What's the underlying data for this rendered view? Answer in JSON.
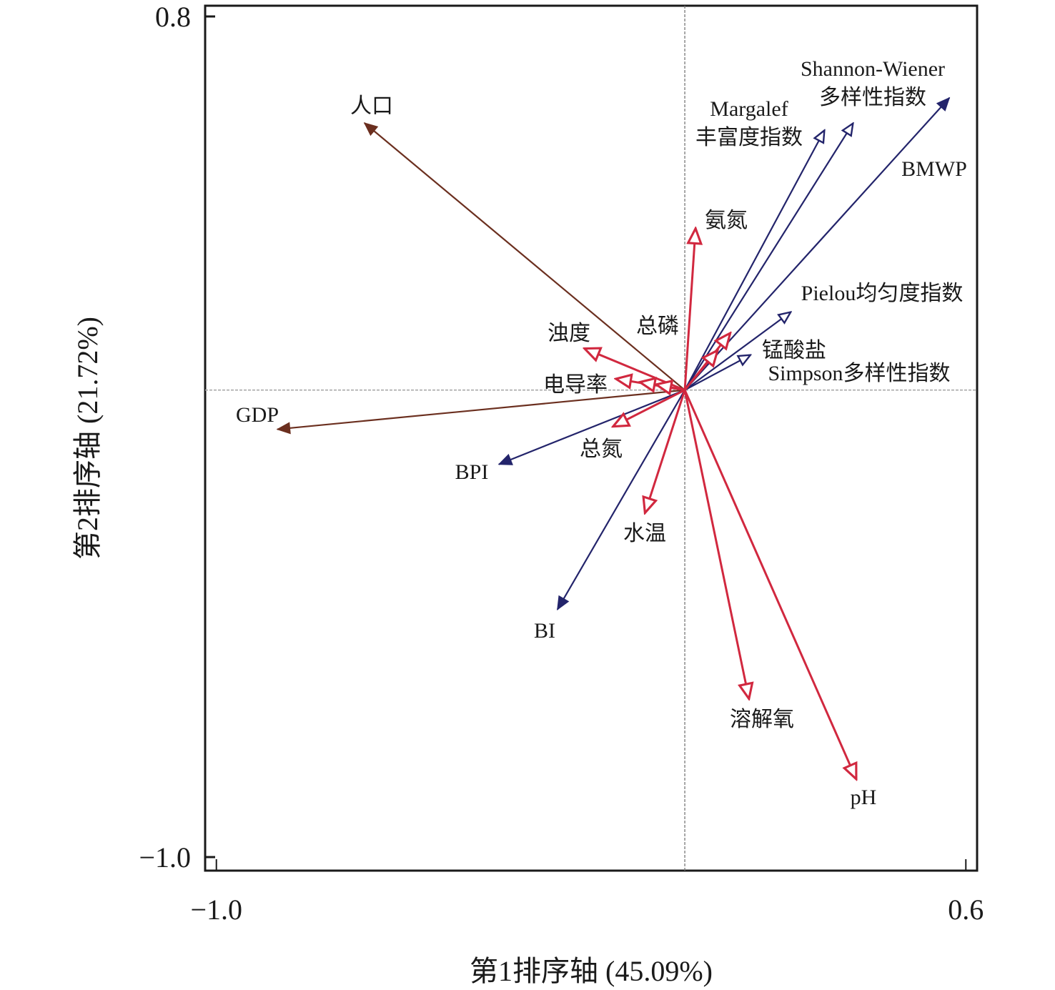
{
  "chart_data": {
    "type": "biplot",
    "subtype": "RDA ordination biplot (vector arrows from origin)",
    "title": "",
    "xlabel": "第1排序轴 (45.09%)",
    "ylabel": "第2排序轴 (21.72%)",
    "xlim": [
      -1.024,
      0.624
    ],
    "ylim": [
      -1.029,
      0.823
    ],
    "xticks": [
      {
        "value": -1.0,
        "label": "−1.0"
      },
      {
        "value": 0.6,
        "label": "0.6"
      }
    ],
    "yticks": [
      {
        "value": 0.8,
        "label": "0.8"
      },
      {
        "value": -1.0,
        "label": "−1.0"
      }
    ],
    "reference_lines": {
      "x0": true,
      "y0": true,
      "style": "dashed"
    },
    "grid": false,
    "legend": "none",
    "groups": [
      {
        "name": "socioeconomic",
        "color": "#6b2f1f",
        "arrowhead": "filled"
      },
      {
        "name": "environmental",
        "color": "#d1283f",
        "arrowhead": "open"
      },
      {
        "name": "biotic-index-filled",
        "color": "#23246b",
        "arrowhead": "filled"
      },
      {
        "name": "biotic-index-open",
        "color": "#23246b",
        "arrowhead": "open"
      }
    ],
    "vectors": [
      {
        "name": "人口",
        "group": "socioeconomic",
        "x": -0.684,
        "y": 0.572,
        "label": "人口"
      },
      {
        "name": "GDP",
        "group": "socioeconomic",
        "x": -0.87,
        "y": -0.084,
        "label": "GDP"
      },
      {
        "name": "BMWP",
        "group": "biotic-index-filled",
        "x": 0.565,
        "y": 0.626,
        "label": "BMWP"
      },
      {
        "name": "BPI",
        "group": "biotic-index-filled",
        "x": -0.397,
        "y": -0.159,
        "label": "BPI"
      },
      {
        "name": "BI",
        "group": "biotic-index-filled",
        "x": -0.272,
        "y": -0.47,
        "label": "BI"
      },
      {
        "name": "Margalef丰富度指数",
        "group": "biotic-index-open",
        "x": 0.298,
        "y": 0.556,
        "label": "Margalef\n丰富度指数"
      },
      {
        "name": "Shannon-Wiener多样性指数",
        "group": "biotic-index-open",
        "x": 0.359,
        "y": 0.571,
        "label": "Shannon-Wiener\n多样性指数"
      },
      {
        "name": "Pielou均匀度指数",
        "group": "biotic-index-open",
        "x": 0.226,
        "y": 0.167,
        "label": "Pielou均匀度指数"
      },
      {
        "name": "Simpson多样性指数",
        "group": "biotic-index-open",
        "x": 0.14,
        "y": 0.075,
        "label": "Simpson多样性指数"
      },
      {
        "name": "氨氮",
        "group": "environmental",
        "x": 0.023,
        "y": 0.346,
        "label": "氨氮"
      },
      {
        "name": "锰酸盐",
        "group": "environmental",
        "x": 0.097,
        "y": 0.122,
        "label": "锰酸盐"
      },
      {
        "name": "总磷",
        "group": "environmental",
        "x": 0.07,
        "y": 0.085,
        "label": "总磷"
      },
      {
        "name": "浊度",
        "group": "environmental",
        "x": -0.214,
        "y": 0.089,
        "label": "浊度"
      },
      {
        "name": "电导率",
        "group": "environmental",
        "x": -0.147,
        "y": 0.024,
        "label": "电导率"
      },
      {
        "name": "电导率-短1",
        "group": "environmental",
        "x": -0.096,
        "y": 0.017,
        "label": ""
      },
      {
        "name": "电导率-短2",
        "group": "environmental",
        "x": -0.061,
        "y": 0.012,
        "label": ""
      },
      {
        "name": "总氮",
        "group": "environmental",
        "x": -0.153,
        "y": -0.078,
        "label": "总氮"
      },
      {
        "name": "水温",
        "group": "environmental",
        "x": -0.085,
        "y": -0.263,
        "label": "水温"
      },
      {
        "name": "溶解氧",
        "group": "environmental",
        "x": 0.137,
        "y": -0.661,
        "label": "溶解氧"
      },
      {
        "name": "pH",
        "group": "environmental",
        "x": 0.366,
        "y": -0.833,
        "label": "pH"
      }
    ]
  }
}
